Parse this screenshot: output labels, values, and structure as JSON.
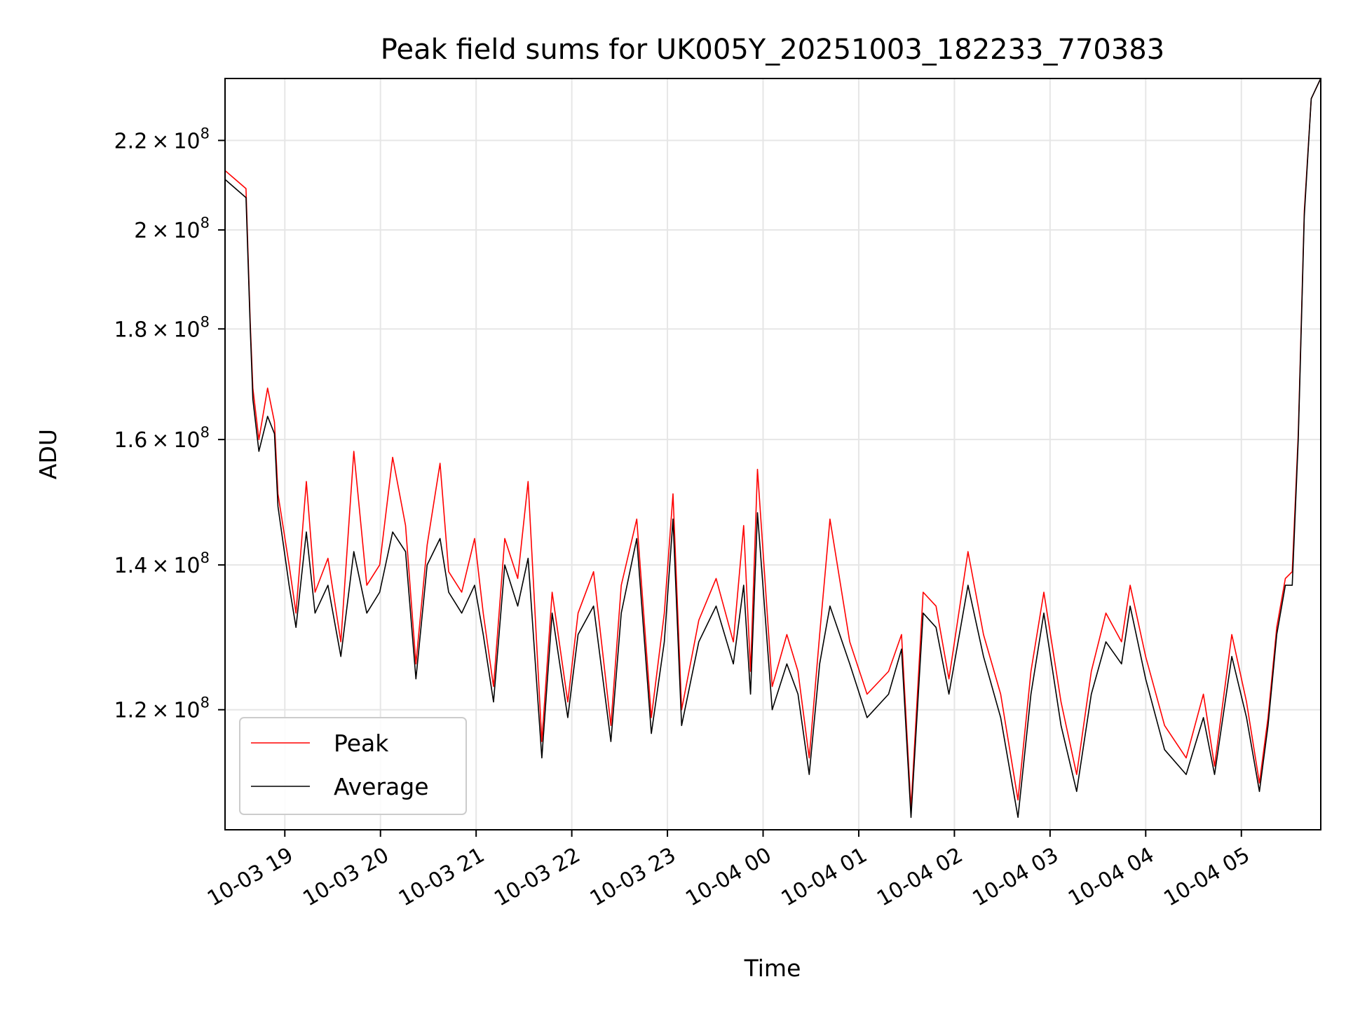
{
  "chart_data": {
    "type": "line",
    "title": "Peak field sums for UK005Y_20251003_182233_770383",
    "xlabel": "Time",
    "ylabel": "ADU",
    "yscale": "log",
    "x_units": "hours since 2025-10-03 00:00",
    "xlim": [
      18.375,
      29.83
    ],
    "ylim": [
      105600000.0,
      235000000.0
    ],
    "grid": true,
    "legend_position": "lower-left",
    "x_ticks": [
      {
        "value": 19,
        "label": "10-03 19"
      },
      {
        "value": 20,
        "label": "10-03 20"
      },
      {
        "value": 21,
        "label": "10-03 21"
      },
      {
        "value": 22,
        "label": "10-03 22"
      },
      {
        "value": 23,
        "label": "10-03 23"
      },
      {
        "value": 24,
        "label": "10-04 00"
      },
      {
        "value": 25,
        "label": "10-04 01"
      },
      {
        "value": 26,
        "label": "10-04 02"
      },
      {
        "value": 27,
        "label": "10-04 03"
      },
      {
        "value": 28,
        "label": "10-04 04"
      },
      {
        "value": 29,
        "label": "10-04 05"
      }
    ],
    "y_ticks": [
      {
        "value": 220000000.0,
        "mantissa": "2.2",
        "times": "×",
        "base": "10",
        "exp": "8"
      },
      {
        "value": 200000000.0,
        "mantissa": "2",
        "times": "×",
        "base": "10",
        "exp": "8"
      },
      {
        "value": 180000000.0,
        "mantissa": "1.8",
        "times": "×",
        "base": "10",
        "exp": "8"
      },
      {
        "value": 160000000.0,
        "mantissa": "1.6",
        "times": "×",
        "base": "10",
        "exp": "8"
      },
      {
        "value": 140000000.0,
        "mantissa": "1.4",
        "times": "×",
        "base": "10",
        "exp": "8"
      },
      {
        "value": 120000000.0,
        "mantissa": "1.2",
        "times": "×",
        "base": "10",
        "exp": "8"
      }
    ],
    "x": [
      18.378,
      18.594,
      18.639,
      18.666,
      18.729,
      18.82,
      18.892,
      18.928,
      19.045,
      19.117,
      19.225,
      19.316,
      19.451,
      19.586,
      19.721,
      19.857,
      19.992,
      20.127,
      20.262,
      20.371,
      20.488,
      20.623,
      20.713,
      20.849,
      20.984,
      21.074,
      21.182,
      21.299,
      21.435,
      21.543,
      21.687,
      21.795,
      21.958,
      22.066,
      22.228,
      22.409,
      22.517,
      22.679,
      22.832,
      22.967,
      23.058,
      23.148,
      23.328,
      23.509,
      23.689,
      23.797,
      23.869,
      23.941,
      24.095,
      24.248,
      24.365,
      24.482,
      24.591,
      24.699,
      24.906,
      25.087,
      25.312,
      25.447,
      25.546,
      25.673,
      25.808,
      25.943,
      26.142,
      26.304,
      26.484,
      26.665,
      26.8,
      26.935,
      27.115,
      27.278,
      27.431,
      27.584,
      27.747,
      27.837,
      27.999,
      28.197,
      28.423,
      28.603,
      28.72,
      28.9,
      29.054,
      29.189,
      29.279,
      29.37,
      29.46,
      29.532,
      29.595,
      29.658,
      29.73,
      29.829
    ],
    "series": [
      {
        "name": "Peak",
        "color": "#ff0000",
        "values": [
          213000000.0,
          209000000.0,
          181000000.0,
          169000000.0,
          160000000.0,
          169000000.0,
          163000000.0,
          151000000.0,
          140000000.0,
          133000000.0,
          153000000.0,
          136000000.0,
          141000000.0,
          129000000.0,
          158000000.0,
          137000000.0,
          140000000.0,
          157000000.0,
          146000000.0,
          126000000.0,
          143000000.0,
          156000000.0,
          139000000.0,
          136000000.0,
          144000000.0,
          133000000.0,
          123000000.0,
          144000000.0,
          138000000.0,
          153000000.0,
          116000000.0,
          136000000.0,
          121000000.0,
          133000000.0,
          139000000.0,
          118000000.0,
          137000000.0,
          147000000.0,
          119000000.0,
          133000000.0,
          151000000.0,
          120000000.0,
          132000000.0,
          138000000.0,
          129000000.0,
          146000000.0,
          125000000.0,
          155000000.0,
          123000000.0,
          130000000.0,
          125000000.0,
          114000000.0,
          130000000.0,
          147000000.0,
          129000000.0,
          122000000.0,
          125000000.0,
          130000000.0,
          108000000.0,
          136000000.0,
          134000000.0,
          124000000.0,
          142000000.0,
          130000000.0,
          122000000.0,
          109000000.0,
          125000000.0,
          136000000.0,
          121000000.0,
          112000000.0,
          125000000.0,
          133000000.0,
          129000000.0,
          137000000.0,
          127000000.0,
          118000000.0,
          114000000.0,
          122000000.0,
          113000000.0,
          130000000.0,
          121000000.0,
          111000000.0,
          119000000.0,
          131000000.0,
          138000000.0,
          139000000.0,
          161000000.0,
          204000000.0,
          230000000.0,
          235000000.0
        ]
      },
      {
        "name": "Average",
        "color": "#000000",
        "values": [
          211000000.0,
          207000000.0,
          180000000.0,
          167000000.0,
          158000000.0,
          164000000.0,
          161000000.0,
          149000000.0,
          137000000.0,
          131000000.0,
          145000000.0,
          133000000.0,
          137000000.0,
          127000000.0,
          142000000.0,
          133000000.0,
          136000000.0,
          145000000.0,
          142000000.0,
          124000000.0,
          140000000.0,
          144000000.0,
          136000000.0,
          133000000.0,
          137000000.0,
          130000000.0,
          121000000.0,
          140000000.0,
          134000000.0,
          141000000.0,
          114000000.0,
          133000000.0,
          119000000.0,
          130000000.0,
          134000000.0,
          116000000.0,
          133000000.0,
          144000000.0,
          117000000.0,
          129000000.0,
          147000000.0,
          118000000.0,
          129000000.0,
          134000000.0,
          126000000.0,
          137000000.0,
          122000000.0,
          148000000.0,
          120000000.0,
          126000000.0,
          122000000.0,
          112000000.0,
          126000000.0,
          134000000.0,
          126000000.0,
          119000000.0,
          122000000.0,
          128000000.0,
          107000000.0,
          133000000.0,
          131000000.0,
          122000000.0,
          137000000.0,
          127000000.0,
          119000000.0,
          107000000.0,
          122000000.0,
          133000000.0,
          118000000.0,
          110000000.0,
          122000000.0,
          129000000.0,
          126000000.0,
          134000000.0,
          124000000.0,
          115000000.0,
          112000000.0,
          119000000.0,
          112000000.0,
          127000000.0,
          119000000.0,
          110000000.0,
          118000000.0,
          130000000.0,
          137000000.0,
          137000000.0,
          160000000.0,
          203000000.0,
          230000000.0,
          235000000.0
        ]
      }
    ]
  }
}
